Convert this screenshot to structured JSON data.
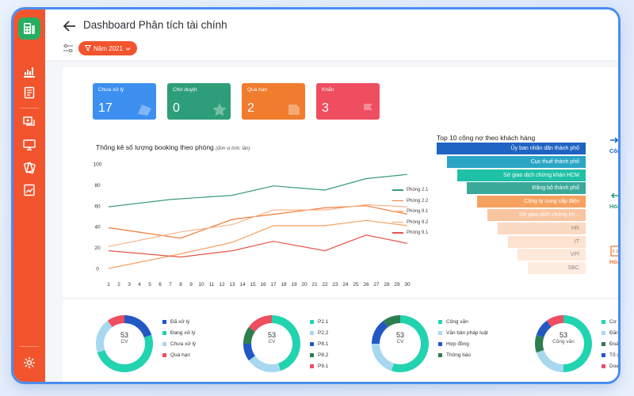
{
  "header": {
    "title": "Dashboard Phân tích tài chính",
    "year_filter": "Năm 2021"
  },
  "kpis": [
    {
      "label": "Chưa xử lý",
      "value": "17",
      "color": "#3d8ff0"
    },
    {
      "label": "Chờ duyệt",
      "value": "0",
      "color": "#2e9e7a"
    },
    {
      "label": "Quá hạn",
      "value": "2",
      "color": "#f07c2e"
    },
    {
      "label": "Khẩn",
      "value": "3",
      "color": "#ef4d60"
    }
  ],
  "chart_data": [
    {
      "type": "line",
      "title": "Thống kê số lượng booking theo phòng",
      "unit_note": "(đơn vị tính: lần)",
      "x": [
        1,
        2,
        3,
        4,
        5,
        6,
        7,
        8,
        9,
        10,
        11,
        12,
        13,
        14,
        15,
        16,
        17,
        18,
        19,
        20,
        21,
        22,
        23,
        24,
        25,
        26,
        27,
        28,
        29,
        30
      ],
      "ylim": [
        0,
        100
      ],
      "yticks": [
        0,
        20,
        40,
        60,
        80,
        100
      ],
      "series": [
        {
          "name": "Phòng 2.1",
          "color": "#3a9c74",
          "points": [
            [
              1,
              59
            ],
            [
              7,
              66
            ],
            [
              13,
              70
            ],
            [
              17,
              79
            ],
            [
              22,
              75
            ],
            [
              26,
              86
            ],
            [
              30,
              90
            ]
          ]
        },
        {
          "name": "Phòng 2.2",
          "color": "#ef7b3a",
          "points": [
            [
              1,
              39
            ],
            [
              8,
              29
            ],
            [
              13,
              47
            ],
            [
              18,
              53
            ],
            [
              22,
              58
            ],
            [
              26,
              60
            ],
            [
              30,
              52
            ]
          ]
        },
        {
          "name": "Phòng 8.1",
          "color": "#f7b38a",
          "points": [
            [
              1,
              21
            ],
            [
              8,
              35
            ],
            [
              13,
              42
            ],
            [
              17,
              56
            ],
            [
              22,
              56
            ],
            [
              26,
              61
            ],
            [
              30,
              59
            ]
          ]
        },
        {
          "name": "Phòng 8.2",
          "color": "#f6a25f",
          "points": [
            [
              1,
              0
            ],
            [
              8,
              14
            ],
            [
              13,
              25
            ],
            [
              17,
              41
            ],
            [
              22,
              41
            ],
            [
              26,
              46
            ],
            [
              30,
              41
            ]
          ]
        },
        {
          "name": "Phòng 9.1",
          "color": "#e5564a",
          "points": [
            [
              1,
              17
            ],
            [
              8,
              11
            ],
            [
              13,
              17
            ],
            [
              17,
              26
            ],
            [
              22,
              17
            ],
            [
              26,
              32
            ],
            [
              30,
              24
            ]
          ]
        }
      ]
    },
    {
      "type": "bar",
      "title": "Top 10 công nợ theo khách hàng",
      "categories": [
        "Ủy ban nhân dân thành phố",
        "Cục thuế thành phố",
        "Sở giao dịch chứng khán HCM",
        "Đăng bộ thành phố",
        "Công ty cung cấp điện",
        "Sở giao dịch chứng kh...",
        "HR",
        "IT",
        "VPI",
        "SBC"
      ],
      "values": [
        10,
        9,
        8,
        7,
        6,
        5,
        4,
        3,
        2,
        1
      ],
      "colors": [
        "#1f63c3",
        "#2aa5c6",
        "#1fc1a6",
        "#3aa99a",
        "#f7a160",
        "#f9c5a0",
        "#fbdac3",
        "#fce2cf",
        "#fde9da",
        "#fdece0"
      ]
    },
    {
      "type": "pie",
      "center_value": "53",
      "center_label": "CV",
      "labels": [
        "Đã xử lý",
        "Đang xử lý",
        "Chưa xử lý",
        "Quá hạn"
      ],
      "values": [
        20,
        50,
        20,
        10
      ],
      "colors": [
        "#2358c4",
        "#22d3b0",
        "#a7d8f0",
        "#ef4d60"
      ]
    },
    {
      "type": "pie",
      "center_value": "53",
      "center_label": "CV",
      "labels": [
        "P2.1",
        "P2.2",
        "P8.1",
        "P8.2",
        "P9.1"
      ],
      "values": [
        45,
        20,
        10,
        10,
        15
      ],
      "colors": [
        "#22d3b0",
        "#a7d8f0",
        "#2358c4",
        "#2e7d4f",
        "#ef4d60"
      ]
    },
    {
      "type": "pie",
      "center_value": "53",
      "center_label": "CV",
      "labels": [
        "Công văn",
        "Văn bản pháp luật",
        "Hợp đồng",
        "Thông báo"
      ],
      "values": [
        55,
        20,
        15,
        10
      ],
      "colors": [
        "#22d3b0",
        "#a7d8f0",
        "#2358c4",
        "#2e7d4f"
      ]
    },
    {
      "type": "pie",
      "center_value": "53",
      "center_label": "Công văn",
      "labels": [
        "Cơ qu",
        "Đăng",
        "Đoàn",
        "Tổ ch",
        "Doanl"
      ],
      "values": [
        50,
        20,
        10,
        10,
        10
      ],
      "colors": [
        "#22d3b0",
        "#a7d8f0",
        "#2e7d4f",
        "#2358c4",
        "#ef4d60"
      ]
    }
  ],
  "side_cards": [
    {
      "label": "Công",
      "color": "#1f63c3"
    },
    {
      "label": "Hóa",
      "color": "#2e9e7a"
    },
    {
      "label": "Hóa",
      "color": "#f07c2e"
    }
  ]
}
